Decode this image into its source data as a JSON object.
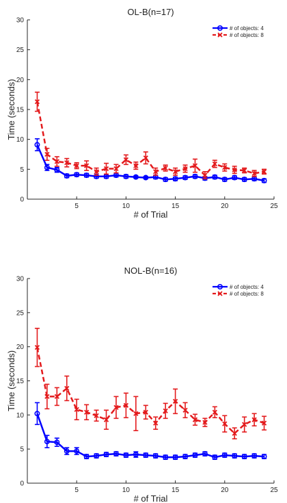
{
  "colors": {
    "series_a": "#0000ff",
    "series_b": "#e31a1c",
    "axis": "#262626"
  },
  "chart_data": [
    {
      "type": "line",
      "title": "OL-B(n=17)",
      "xlabel": "# of Trial",
      "ylabel": "Time (seconds)",
      "xlim": [
        0,
        25
      ],
      "ylim": [
        0,
        30
      ],
      "xticks": [
        0,
        5,
        10,
        15,
        20,
        25
      ],
      "yticks": [
        0,
        5,
        10,
        15,
        20,
        25,
        30
      ],
      "xtick_labels": [
        "5",
        "10",
        "15",
        "20",
        "25"
      ],
      "ytick_labels": [
        "0",
        "5",
        "10",
        "15",
        "20",
        "25",
        "30"
      ],
      "legend_position": "top-right",
      "grid": false,
      "x": [
        1,
        2,
        3,
        4,
        5,
        6,
        7,
        8,
        9,
        10,
        11,
        12,
        13,
        14,
        15,
        16,
        17,
        18,
        19,
        20,
        21,
        22,
        23,
        24
      ],
      "series": [
        {
          "name": "# of objects: 4",
          "marker": "circle",
          "linestyle": "solid",
          "values": [
            9.1,
            5.3,
            4.9,
            3.9,
            4.1,
            4.0,
            3.8,
            3.8,
            4.0,
            3.8,
            3.7,
            3.6,
            3.7,
            3.3,
            3.4,
            3.6,
            3.8,
            3.5,
            3.7,
            3.3,
            3.6,
            3.3,
            3.4,
            3.1
          ],
          "errors": [
            1.0,
            0.5,
            0.4,
            0.3,
            0.3,
            0.3,
            0.3,
            0.3,
            0.3,
            0.3,
            0.2,
            0.2,
            0.3,
            0.3,
            0.3,
            0.3,
            0.3,
            0.3,
            0.3,
            0.3,
            0.3,
            0.3,
            0.3,
            0.3
          ]
        },
        {
          "name": "# of objects: 8",
          "marker": "x",
          "linestyle": "dashed",
          "values": [
            16.3,
            7.5,
            6.3,
            6.1,
            5.6,
            5.6,
            4.6,
            5.1,
            5.1,
            6.6,
            5.6,
            6.9,
            4.6,
            5.2,
            4.6,
            5.1,
            5.6,
            4.0,
            5.9,
            5.3,
            4.9,
            4.8,
            4.3,
            4.6
          ],
          "errors": [
            1.6,
            1.0,
            0.8,
            0.7,
            0.5,
            0.8,
            0.6,
            0.9,
            0.7,
            0.8,
            0.6,
            1.0,
            0.6,
            0.5,
            0.6,
            0.6,
            1.1,
            0.6,
            0.6,
            0.6,
            0.6,
            0.4,
            0.5,
            0.4
          ]
        }
      ]
    },
    {
      "type": "line",
      "title": "NOL-B(n=16)",
      "xlabel": "# of Trial",
      "ylabel": "Time (seconds)",
      "xlim": [
        0,
        25
      ],
      "ylim": [
        0,
        30
      ],
      "xticks": [
        0,
        5,
        10,
        15,
        20,
        25
      ],
      "yticks": [
        0,
        5,
        10,
        15,
        20,
        25,
        30
      ],
      "xtick_labels": [
        "5",
        "10",
        "15",
        "20",
        "25"
      ],
      "ytick_labels": [
        "0",
        "5",
        "10",
        "15",
        "20",
        "25",
        "30"
      ],
      "legend_position": "top-right",
      "grid": false,
      "x": [
        1,
        2,
        3,
        4,
        5,
        6,
        7,
        8,
        9,
        10,
        11,
        12,
        13,
        14,
        15,
        16,
        17,
        18,
        19,
        20,
        21,
        22,
        23,
        24
      ],
      "series": [
        {
          "name": "# of objects: 4",
          "marker": "circle",
          "linestyle": "solid",
          "values": [
            10.2,
            6.1,
            6.0,
            4.7,
            4.7,
            3.9,
            4.0,
            4.2,
            4.3,
            4.1,
            4.2,
            4.1,
            4.0,
            3.8,
            3.8,
            3.9,
            4.1,
            4.3,
            3.8,
            4.1,
            4.0,
            3.9,
            4.0,
            3.9
          ],
          "errors": [
            1.6,
            0.9,
            0.6,
            0.5,
            0.5,
            0.3,
            0.3,
            0.3,
            0.3,
            0.3,
            0.4,
            0.3,
            0.3,
            0.3,
            0.3,
            0.3,
            0.3,
            0.3,
            0.3,
            0.3,
            0.3,
            0.3,
            0.3,
            0.3
          ]
        },
        {
          "name": "# of objects: 8",
          "marker": "x",
          "linestyle": "dashed",
          "values": [
            19.9,
            12.7,
            12.7,
            13.9,
            10.8,
            10.4,
            9.9,
            9.3,
            11.1,
            11.4,
            10.2,
            10.4,
            8.8,
            10.6,
            12.0,
            10.7,
            9.3,
            8.9,
            10.4,
            8.7,
            7.3,
            8.6,
            9.3,
            8.8
          ],
          "errors": [
            2.8,
            1.8,
            1.3,
            1.8,
            1.5,
            1.1,
            0.8,
            1.4,
            1.6,
            1.8,
            2.5,
            1.0,
            0.9,
            1.1,
            1.8,
            1.1,
            0.8,
            0.6,
            0.8,
            1.2,
            0.8,
            1.1,
            0.9,
            1.0
          ]
        }
      ]
    }
  ]
}
